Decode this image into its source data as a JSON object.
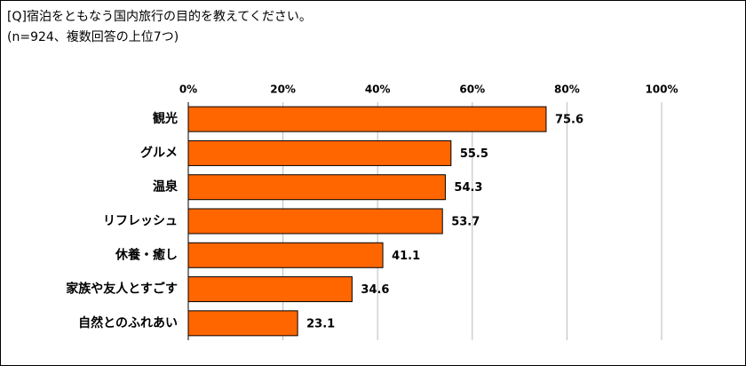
{
  "chart_data": {
    "type": "bar",
    "orientation": "horizontal",
    "title": "[Q]宿泊をともなう国内旅行の目的を教えてください。",
    "subtitle": "(n=924、複数回答の上位7つ)",
    "categories": [
      "観光",
      "グルメ",
      "温泉",
      "リフレッシュ",
      "休養・癒し",
      "家族や友人とすごす",
      "自然とのふれあい"
    ],
    "values": [
      75.6,
      55.5,
      54.3,
      53.7,
      41.1,
      34.6,
      23.1
    ],
    "color": "#ff6600",
    "xlim": [
      0,
      100
    ],
    "xticks": [
      {
        "value": 0,
        "label": "0%"
      },
      {
        "value": 20,
        "label": "20%"
      },
      {
        "value": 40,
        "label": "40%"
      },
      {
        "value": 60,
        "label": "60%"
      },
      {
        "value": 80,
        "label": "80%"
      },
      {
        "value": 100,
        "label": "100%"
      }
    ],
    "grid": true
  }
}
